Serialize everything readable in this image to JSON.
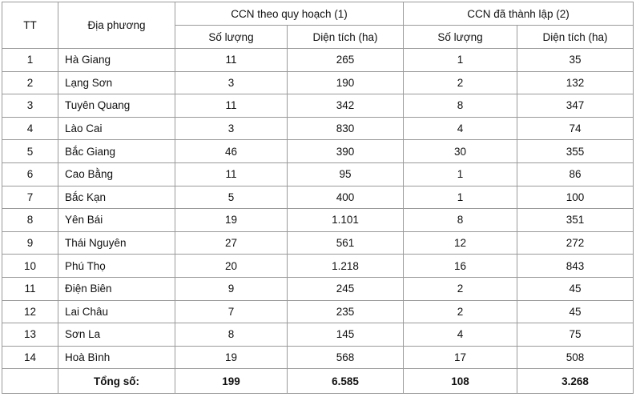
{
  "table": {
    "header": {
      "tt": "TT",
      "locality": "Địa phương",
      "group1": "CCN theo quy hoạch (1)",
      "group2": "CCN đã thành lập (2)",
      "subheaders": [
        "Số lượng",
        "Diện tích (ha)",
        "Số lượng",
        "Diện tích (ha)"
      ]
    },
    "rows": [
      [
        "1",
        "Hà Giang",
        "11",
        "265",
        "1",
        "35"
      ],
      [
        "2",
        "Lạng Sơn",
        "3",
        "190",
        "2",
        "132"
      ],
      [
        "3",
        "Tuyên Quang",
        "11",
        "342",
        "8",
        "347"
      ],
      [
        "4",
        "Lào Cai",
        "3",
        "830",
        "4",
        "74"
      ],
      [
        "5",
        "Bắc Giang",
        "46",
        "390",
        "30",
        "355"
      ],
      [
        "6",
        "Cao Bằng",
        "11",
        "95",
        "1",
        "86"
      ],
      [
        "7",
        "Bắc Kạn",
        "5",
        "400",
        "1",
        "100"
      ],
      [
        "8",
        "Yên Bái",
        "19",
        "1.101",
        "8",
        "351"
      ],
      [
        "9",
        "Thái Nguyên",
        "27",
        "561",
        "12",
        "272"
      ],
      [
        "10",
        "Phú Thọ",
        "20",
        "1.218",
        "16",
        "843"
      ],
      [
        "11",
        "Điện Biên",
        "9",
        "245",
        "2",
        "45"
      ],
      [
        "12",
        "Lai Châu",
        "7",
        "235",
        "2",
        "45"
      ],
      [
        "13",
        "Sơn La",
        "8",
        "145",
        "4",
        "75"
      ],
      [
        "14",
        "Hoà Bình",
        "19",
        "568",
        "17",
        "508"
      ]
    ],
    "total": {
      "label": "Tổng số:",
      "values": [
        "199",
        "6.585",
        "108",
        "3.268"
      ]
    }
  }
}
